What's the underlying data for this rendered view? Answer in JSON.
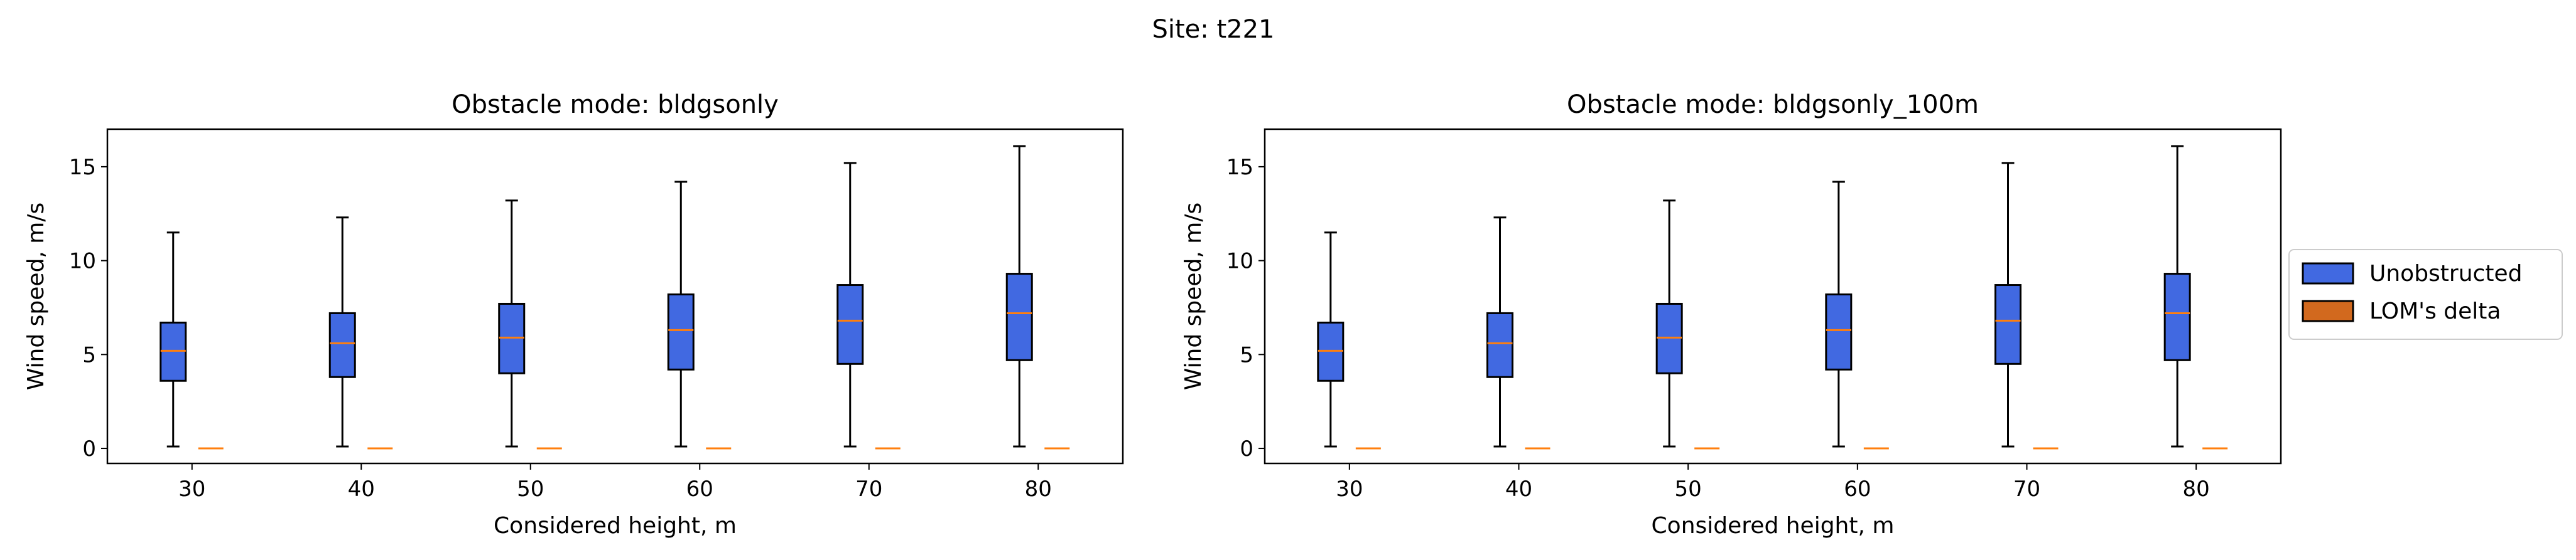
{
  "figure": {
    "suptitle": "Site: t221"
  },
  "legend": {
    "placement": "right",
    "items": [
      {
        "label": "Unobstructed",
        "color": "#4169e1"
      },
      {
        "label": "LOM's delta",
        "color": "#d2691e"
      }
    ]
  },
  "chart_data": [
    {
      "type": "box",
      "title": "Obstacle mode: bldgsonly",
      "xlabel": "Considered height, m",
      "ylabel": "Wind speed, m/s",
      "ylim": [
        -0.8,
        17
      ],
      "yticks": [
        0,
        5,
        10,
        15
      ],
      "categories": [
        "30",
        "40",
        "50",
        "60",
        "70",
        "80"
      ],
      "series": [
        {
          "name": "Unobstructed",
          "color": "#4169e1",
          "boxes": [
            {
              "min": 0.1,
              "q1": 3.6,
              "median": 5.2,
              "q3": 6.7,
              "max": 11.5
            },
            {
              "min": 0.1,
              "q1": 3.8,
              "median": 5.6,
              "q3": 7.2,
              "max": 12.3
            },
            {
              "min": 0.1,
              "q1": 4.0,
              "median": 5.9,
              "q3": 7.7,
              "max": 13.2
            },
            {
              "min": 0.1,
              "q1": 4.2,
              "median": 6.3,
              "q3": 8.2,
              "max": 14.2
            },
            {
              "min": 0.1,
              "q1": 4.5,
              "median": 6.8,
              "q3": 8.7,
              "max": 15.2
            },
            {
              "min": 0.1,
              "q1": 4.7,
              "median": 7.2,
              "q3": 9.3,
              "max": 16.1
            }
          ]
        },
        {
          "name": "LOM's delta",
          "color": "#d2691e",
          "boxes": [
            {
              "min": 0,
              "q1": 0,
              "median": 0,
              "q3": 0,
              "max": 0
            },
            {
              "min": 0,
              "q1": 0,
              "median": 0,
              "q3": 0,
              "max": 0
            },
            {
              "min": 0,
              "q1": 0,
              "median": 0,
              "q3": 0,
              "max": 0
            },
            {
              "min": 0,
              "q1": 0,
              "median": 0,
              "q3": 0,
              "max": 0
            },
            {
              "min": 0,
              "q1": 0,
              "median": 0,
              "q3": 0,
              "max": 0
            },
            {
              "min": 0,
              "q1": 0,
              "median": 0,
              "q3": 0,
              "max": 0
            }
          ]
        }
      ]
    },
    {
      "type": "box",
      "title": "Obstacle mode: bldgsonly_100m",
      "xlabel": "Considered height, m",
      "ylabel": "Wind speed, m/s",
      "ylim": [
        -0.8,
        17
      ],
      "yticks": [
        0,
        5,
        10,
        15
      ],
      "categories": [
        "30",
        "40",
        "50",
        "60",
        "70",
        "80"
      ],
      "series": [
        {
          "name": "Unobstructed",
          "color": "#4169e1",
          "boxes": [
            {
              "min": 0.1,
              "q1": 3.6,
              "median": 5.2,
              "q3": 6.7,
              "max": 11.5
            },
            {
              "min": 0.1,
              "q1": 3.8,
              "median": 5.6,
              "q3": 7.2,
              "max": 12.3
            },
            {
              "min": 0.1,
              "q1": 4.0,
              "median": 5.9,
              "q3": 7.7,
              "max": 13.2
            },
            {
              "min": 0.1,
              "q1": 4.2,
              "median": 6.3,
              "q3": 8.2,
              "max": 14.2
            },
            {
              "min": 0.1,
              "q1": 4.5,
              "median": 6.8,
              "q3": 8.7,
              "max": 15.2
            },
            {
              "min": 0.1,
              "q1": 4.7,
              "median": 7.2,
              "q3": 9.3,
              "max": 16.1
            }
          ]
        },
        {
          "name": "LOM's delta",
          "color": "#d2691e",
          "boxes": [
            {
              "min": 0,
              "q1": 0,
              "median": 0,
              "q3": 0,
              "max": 0
            },
            {
              "min": 0,
              "q1": 0,
              "median": 0,
              "q3": 0,
              "max": 0
            },
            {
              "min": 0,
              "q1": 0,
              "median": 0,
              "q3": 0,
              "max": 0
            },
            {
              "min": 0,
              "q1": 0,
              "median": 0,
              "q3": 0,
              "max": 0
            },
            {
              "min": 0,
              "q1": 0,
              "median": 0,
              "q3": 0,
              "max": 0
            },
            {
              "min": 0,
              "q1": 0,
              "median": 0,
              "q3": 0,
              "max": 0
            }
          ]
        }
      ]
    }
  ]
}
